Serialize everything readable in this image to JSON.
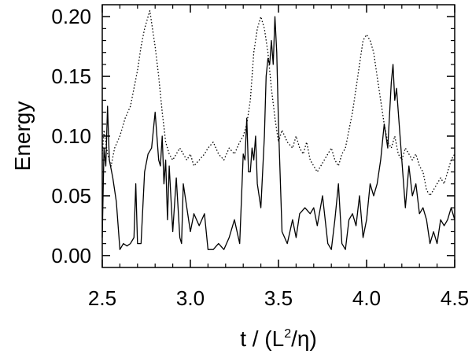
{
  "chart_data": {
    "type": "line",
    "xlabel": {
      "prefix": "t / (L",
      "sup": "2",
      "suffix": "/η)"
    },
    "ylabel": "Energy",
    "xlim": [
      2.5,
      4.5
    ],
    "ylim": [
      -0.01,
      0.21
    ],
    "xticks": [
      "2.5",
      "3.0",
      "3.5",
      "4.0",
      "4.5"
    ],
    "yticks": [
      "0.00",
      "0.05",
      "0.10",
      "0.15",
      "0.20"
    ],
    "grid": false,
    "series": [
      {
        "style": "solid",
        "color": "#000000",
        "x": [
          2.5,
          2.51,
          2.52,
          2.53,
          2.54,
          2.56,
          2.58,
          2.6,
          2.62,
          2.64,
          2.66,
          2.68,
          2.69,
          2.7,
          2.72,
          2.74,
          2.76,
          2.78,
          2.8,
          2.82,
          2.83,
          2.84,
          2.85,
          2.86,
          2.87,
          2.88,
          2.9,
          2.92,
          2.94,
          2.95,
          2.96,
          2.98,
          3.0,
          3.02,
          3.05,
          3.08,
          3.1,
          3.13,
          3.16,
          3.19,
          3.22,
          3.25,
          3.28,
          3.3,
          3.31,
          3.32,
          3.33,
          3.34,
          3.35,
          3.36,
          3.37,
          3.38,
          3.4,
          3.42,
          3.43,
          3.44,
          3.45,
          3.46,
          3.47,
          3.48,
          3.49,
          3.5,
          3.52,
          3.55,
          3.58,
          3.6,
          3.62,
          3.65,
          3.68,
          3.7,
          3.72,
          3.75,
          3.78,
          3.8,
          3.82,
          3.84,
          3.86,
          3.88,
          3.9,
          3.92,
          3.94,
          3.96,
          3.98,
          4.0,
          4.02,
          4.04,
          4.06,
          4.08,
          4.1,
          4.12,
          4.14,
          4.15,
          4.16,
          4.17,
          4.18,
          4.2,
          4.22,
          4.24,
          4.26,
          4.28,
          4.3,
          4.32,
          4.34,
          4.36,
          4.38,
          4.4,
          4.42,
          4.44,
          4.46,
          4.48,
          4.5
        ],
        "y": [
          0.015,
          0.09,
          0.075,
          0.125,
          0.08,
          0.065,
          0.045,
          0.005,
          0.01,
          0.008,
          0.01,
          0.015,
          0.06,
          0.01,
          0.01,
          0.07,
          0.085,
          0.09,
          0.12,
          0.08,
          0.075,
          0.1,
          0.06,
          0.08,
          0.03,
          0.075,
          0.02,
          0.065,
          0.015,
          0.01,
          0.06,
          0.04,
          0.02,
          0.035,
          0.025,
          0.035,
          0.005,
          0.005,
          0.01,
          0.005,
          0.015,
          0.03,
          0.01,
          0.085,
          0.08,
          0.115,
          0.07,
          0.07,
          0.09,
          0.08,
          0.1,
          0.06,
          0.04,
          0.1,
          0.15,
          0.165,
          0.16,
          0.18,
          0.16,
          0.2,
          0.17,
          0.11,
          0.02,
          0.01,
          0.03,
          0.015,
          0.035,
          0.04,
          0.035,
          0.04,
          0.025,
          0.05,
          0.01,
          0.005,
          0.03,
          0.06,
          0.01,
          0.005,
          0.03,
          0.035,
          0.025,
          0.05,
          0.015,
          0.03,
          0.06,
          0.05,
          0.06,
          0.08,
          0.11,
          0.09,
          0.145,
          0.16,
          0.13,
          0.14,
          0.12,
          0.08,
          0.04,
          0.075,
          0.05,
          0.06,
          0.035,
          0.04,
          0.03,
          0.01,
          0.02,
          0.01,
          0.03,
          0.025,
          0.03,
          0.04,
          0.03
        ]
      },
      {
        "style": "dotted",
        "color": "#000000",
        "x": [
          2.5,
          2.51,
          2.52,
          2.53,
          2.55,
          2.57,
          2.6,
          2.63,
          2.66,
          2.68,
          2.7,
          2.72,
          2.74,
          2.76,
          2.77,
          2.78,
          2.8,
          2.82,
          2.84,
          2.86,
          2.88,
          2.9,
          2.92,
          2.94,
          2.96,
          2.98,
          3.0,
          3.02,
          3.05,
          3.08,
          3.1,
          3.13,
          3.16,
          3.19,
          3.22,
          3.25,
          3.28,
          3.3,
          3.32,
          3.34,
          3.35,
          3.36,
          3.38,
          3.4,
          3.42,
          3.44,
          3.46,
          3.48,
          3.5,
          3.52,
          3.55,
          3.58,
          3.6,
          3.62,
          3.64,
          3.66,
          3.68,
          3.7,
          3.72,
          3.74,
          3.76,
          3.78,
          3.8,
          3.82,
          3.84,
          3.86,
          3.88,
          3.9,
          3.92,
          3.94,
          3.96,
          3.98,
          4.0,
          4.02,
          4.04,
          4.06,
          4.08,
          4.1,
          4.12,
          4.14,
          4.16,
          4.18,
          4.2,
          4.22,
          4.24,
          4.26,
          4.28,
          4.3,
          4.32,
          4.34,
          4.36,
          4.38,
          4.4,
          4.42,
          4.44,
          4.46,
          4.48,
          4.5
        ],
        "y": [
          0.085,
          0.105,
          0.095,
          0.085,
          0.075,
          0.09,
          0.1,
          0.115,
          0.125,
          0.14,
          0.155,
          0.175,
          0.19,
          0.2,
          0.205,
          0.195,
          0.175,
          0.15,
          0.12,
          0.095,
          0.085,
          0.08,
          0.085,
          0.09,
          0.085,
          0.08,
          0.085,
          0.075,
          0.08,
          0.085,
          0.09,
          0.095,
          0.085,
          0.08,
          0.09,
          0.085,
          0.095,
          0.1,
          0.11,
          0.13,
          0.15,
          0.17,
          0.19,
          0.2,
          0.19,
          0.17,
          0.14,
          0.115,
          0.095,
          0.105,
          0.095,
          0.09,
          0.1,
          0.09,
          0.085,
          0.095,
          0.08,
          0.075,
          0.07,
          0.075,
          0.08,
          0.085,
          0.09,
          0.08,
          0.075,
          0.085,
          0.09,
          0.105,
          0.12,
          0.14,
          0.16,
          0.18,
          0.185,
          0.18,
          0.17,
          0.15,
          0.13,
          0.11,
          0.095,
          0.09,
          0.1,
          0.085,
          0.08,
          0.09,
          0.085,
          0.08,
          0.085,
          0.075,
          0.07,
          0.055,
          0.05,
          0.055,
          0.06,
          0.065,
          0.06,
          0.07,
          0.08,
          0.085
        ]
      }
    ]
  }
}
